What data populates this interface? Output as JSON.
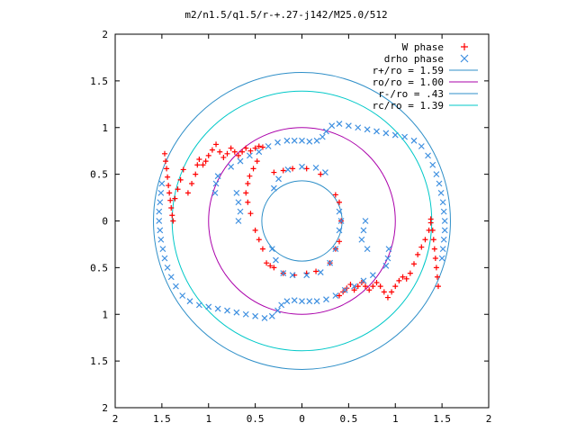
{
  "chart_data": {
    "type": "scatter",
    "title": "m2/n1.5/q1.5/r-+.27-j142/M25.0/512",
    "xlim": [
      -2,
      2
    ],
    "ylim": [
      -2,
      2
    ],
    "x_ticks": [
      -2,
      -1.5,
      -1,
      -0.5,
      0,
      0.5,
      1,
      1.5,
      2
    ],
    "y_ticks": [
      -2,
      -1.5,
      -1,
      -0.5,
      0,
      0.5,
      1,
      1.5,
      2
    ],
    "x_tick_labels": [
      "2",
      "1.5",
      "1",
      "0.5",
      "0",
      "0.5",
      "1",
      "1.5",
      "2"
    ],
    "y_tick_labels": [
      "2",
      "1.5",
      "1",
      "0.5",
      "0",
      "0.5",
      "1",
      "1.5",
      "2"
    ],
    "grid": false,
    "legend_placement": "top-right",
    "series": [
      {
        "name": "W phase",
        "kind": "points",
        "marker": "plus",
        "color": "#ff0000",
        "points": [
          [
            -1.47,
            0.72
          ],
          [
            -1.46,
            0.64
          ],
          [
            -1.45,
            0.56
          ],
          [
            -1.44,
            0.47
          ],
          [
            -1.43,
            0.38
          ],
          [
            -1.42,
            0.3
          ],
          [
            -1.41,
            0.22
          ],
          [
            -1.4,
            0.14
          ],
          [
            -1.39,
            0.06
          ],
          [
            -1.38,
            0.0
          ],
          [
            -1.36,
            0.24
          ],
          [
            -1.33,
            0.34
          ],
          [
            -1.3,
            0.44
          ],
          [
            -1.27,
            0.55
          ],
          [
            -1.22,
            0.3
          ],
          [
            -1.18,
            0.4
          ],
          [
            -1.14,
            0.5
          ],
          [
            -1.12,
            0.6
          ],
          [
            -1.1,
            0.66
          ],
          [
            -1.06,
            0.6
          ],
          [
            -1.03,
            0.64
          ],
          [
            -1.0,
            0.7
          ],
          [
            -0.96,
            0.76
          ],
          [
            -0.92,
            0.82
          ],
          [
            -0.88,
            0.74
          ],
          [
            -0.84,
            0.68
          ],
          [
            -0.8,
            0.72
          ],
          [
            -0.76,
            0.78
          ],
          [
            -0.72,
            0.74
          ],
          [
            -0.68,
            0.7
          ],
          [
            -0.64,
            0.74
          ],
          [
            -0.6,
            0.78
          ],
          [
            -0.55,
            0.75
          ],
          [
            -0.5,
            0.78
          ],
          [
            -0.46,
            0.8
          ],
          [
            -0.42,
            0.79
          ],
          [
            -0.48,
            0.64
          ],
          [
            -0.52,
            0.56
          ],
          [
            -0.56,
            0.48
          ],
          [
            -0.58,
            0.4
          ],
          [
            -0.6,
            0.3
          ],
          [
            -0.58,
            0.2
          ],
          [
            -0.55,
            0.08
          ],
          [
            -0.5,
            -0.1
          ],
          [
            -0.46,
            -0.2
          ],
          [
            -0.42,
            -0.3
          ],
          [
            -0.38,
            -0.45
          ],
          [
            -0.34,
            -0.48
          ],
          [
            -0.3,
            -0.5
          ],
          [
            -0.2,
            -0.56
          ],
          [
            -0.08,
            -0.58
          ],
          [
            0.05,
            -0.56
          ],
          [
            0.15,
            -0.54
          ],
          [
            0.3,
            -0.45
          ],
          [
            0.36,
            -0.3
          ],
          [
            0.4,
            -0.22
          ],
          [
            0.42,
            0.0
          ],
          [
            0.4,
            0.2
          ],
          [
            0.36,
            0.28
          ],
          [
            0.2,
            0.5
          ],
          [
            0.05,
            0.56
          ],
          [
            -0.1,
            0.56
          ],
          [
            -0.2,
            0.54
          ],
          [
            -0.3,
            0.52
          ],
          [
            0.4,
            -0.8
          ],
          [
            0.44,
            -0.76
          ],
          [
            0.48,
            -0.72
          ],
          [
            0.52,
            -0.68
          ],
          [
            0.56,
            -0.74
          ],
          [
            0.6,
            -0.7
          ],
          [
            0.64,
            -0.66
          ],
          [
            0.68,
            -0.7
          ],
          [
            0.72,
            -0.74
          ],
          [
            0.76,
            -0.7
          ],
          [
            0.8,
            -0.66
          ],
          [
            0.84,
            -0.7
          ],
          [
            0.88,
            -0.76
          ],
          [
            0.92,
            -0.82
          ],
          [
            0.96,
            -0.76
          ],
          [
            1.0,
            -0.7
          ],
          [
            1.04,
            -0.64
          ],
          [
            1.08,
            -0.6
          ],
          [
            1.12,
            -0.62
          ],
          [
            1.16,
            -0.56
          ],
          [
            1.2,
            -0.46
          ],
          [
            1.24,
            -0.36
          ],
          [
            1.28,
            -0.28
          ],
          [
            1.32,
            -0.2
          ],
          [
            1.36,
            -0.1
          ],
          [
            1.38,
            -0.02
          ],
          [
            1.38,
            0.02
          ],
          [
            1.4,
            -0.1
          ],
          [
            1.41,
            -0.2
          ],
          [
            1.42,
            -0.3
          ],
          [
            1.43,
            -0.4
          ],
          [
            1.44,
            -0.5
          ],
          [
            1.45,
            -0.6
          ],
          [
            1.46,
            -0.7
          ]
        ]
      },
      {
        "name": "drho phase",
        "kind": "points",
        "marker": "x",
        "color": "#3d8fe0",
        "points": [
          [
            -1.5,
            0.4
          ],
          [
            -1.51,
            0.3
          ],
          [
            -1.52,
            0.2
          ],
          [
            -1.53,
            0.1
          ],
          [
            -1.53,
            0.0
          ],
          [
            -1.52,
            -0.1
          ],
          [
            -1.51,
            -0.2
          ],
          [
            -1.49,
            -0.3
          ],
          [
            -1.47,
            -0.4
          ],
          [
            -1.44,
            -0.5
          ],
          [
            -1.4,
            -0.6
          ],
          [
            -1.35,
            -0.7
          ],
          [
            -1.28,
            -0.8
          ],
          [
            -1.2,
            -0.86
          ],
          [
            -1.1,
            -0.9
          ],
          [
            -1.0,
            -0.92
          ],
          [
            -0.9,
            -0.94
          ],
          [
            -0.8,
            -0.96
          ],
          [
            -0.7,
            -0.98
          ],
          [
            -0.6,
            -1.0
          ],
          [
            -0.5,
            -1.02
          ],
          [
            -0.4,
            -1.04
          ],
          [
            -0.32,
            -1.02
          ],
          [
            -0.26,
            -0.96
          ],
          [
            -0.22,
            -0.9
          ],
          [
            -0.16,
            -0.86
          ],
          [
            -0.08,
            -0.85
          ],
          [
            0.0,
            -0.86
          ],
          [
            0.08,
            -0.86
          ],
          [
            0.16,
            -0.86
          ],
          [
            0.26,
            -0.84
          ],
          [
            0.36,
            -0.8
          ],
          [
            0.46,
            -0.74
          ],
          [
            0.56,
            -0.7
          ],
          [
            0.66,
            -0.64
          ],
          [
            0.76,
            -0.58
          ],
          [
            1.5,
            -0.4
          ],
          [
            1.51,
            -0.3
          ],
          [
            1.52,
            -0.2
          ],
          [
            1.53,
            -0.1
          ],
          [
            1.53,
            0.0
          ],
          [
            1.52,
            0.1
          ],
          [
            1.51,
            0.2
          ],
          [
            1.49,
            0.3
          ],
          [
            1.47,
            0.4
          ],
          [
            1.44,
            0.5
          ],
          [
            1.4,
            0.6
          ],
          [
            1.35,
            0.7
          ],
          [
            1.28,
            0.8
          ],
          [
            1.2,
            0.86
          ],
          [
            1.1,
            0.9
          ],
          [
            1.0,
            0.92
          ],
          [
            0.9,
            0.94
          ],
          [
            0.8,
            0.96
          ],
          [
            0.7,
            0.98
          ],
          [
            0.6,
            1.0
          ],
          [
            0.5,
            1.02
          ],
          [
            0.4,
            1.04
          ],
          [
            0.32,
            1.02
          ],
          [
            0.26,
            0.96
          ],
          [
            0.22,
            0.9
          ],
          [
            0.16,
            0.86
          ],
          [
            0.08,
            0.85
          ],
          [
            0.0,
            0.86
          ],
          [
            -0.08,
            0.86
          ],
          [
            -0.16,
            0.86
          ],
          [
            -0.26,
            0.84
          ],
          [
            -0.36,
            0.8
          ],
          [
            -0.46,
            0.74
          ],
          [
            -0.56,
            0.7
          ],
          [
            -0.66,
            0.64
          ],
          [
            -0.76,
            0.58
          ],
          [
            -0.9,
            0.48
          ],
          [
            -0.92,
            0.4
          ],
          [
            -0.93,
            0.3
          ],
          [
            -0.7,
            0.3
          ],
          [
            -0.68,
            0.2
          ],
          [
            -0.66,
            0.1
          ],
          [
            -0.68,
            0.0
          ],
          [
            -0.3,
            0.35
          ],
          [
            -0.25,
            0.45
          ],
          [
            -0.15,
            0.55
          ],
          [
            0.0,
            0.58
          ],
          [
            0.15,
            0.57
          ],
          [
            0.25,
            0.52
          ],
          [
            0.4,
            0.1
          ],
          [
            0.42,
            0.0
          ],
          [
            0.4,
            -0.1
          ],
          [
            0.36,
            -0.3
          ],
          [
            0.3,
            -0.45
          ],
          [
            0.2,
            -0.55
          ],
          [
            0.05,
            -0.58
          ],
          [
            -0.1,
            -0.58
          ],
          [
            -0.2,
            -0.56
          ],
          [
            -0.28,
            -0.42
          ],
          [
            -0.32,
            -0.3
          ],
          [
            0.64,
            -0.2
          ],
          [
            0.66,
            -0.1
          ],
          [
            0.68,
            0.0
          ],
          [
            0.7,
            -0.3
          ],
          [
            0.9,
            -0.48
          ],
          [
            0.92,
            -0.4
          ],
          [
            0.93,
            -0.3
          ]
        ]
      },
      {
        "name": "r+/ro = 1.59",
        "kind": "circle",
        "radius": 1.59,
        "color": "#2f8fc8"
      },
      {
        "name": "ro/ro = 1.00",
        "kind": "circle",
        "radius": 1.0,
        "color": "#aa00aa"
      },
      {
        "name": "r-/ro = .43",
        "kind": "circle",
        "radius": 0.43,
        "color": "#2f8fc8"
      },
      {
        "name": "rc/ro = 1.39",
        "kind": "circle",
        "radius": 1.39,
        "color": "#00c8c8"
      }
    ]
  }
}
